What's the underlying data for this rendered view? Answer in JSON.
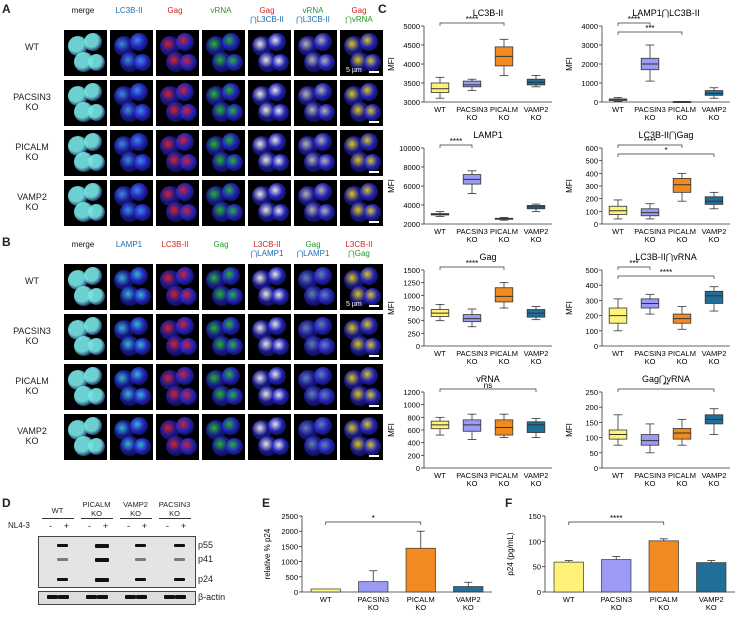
{
  "panels": {
    "A": "A",
    "B": "B",
    "C": "C",
    "D": "D",
    "E": "E",
    "F": "F"
  },
  "micro_A": {
    "headers": [
      {
        "parts": [
          {
            "t": "merge",
            "c": "#111"
          }
        ]
      },
      {
        "parts": [
          {
            "t": "LC3B-II",
            "c": "#1a6fb0"
          }
        ]
      },
      {
        "parts": [
          {
            "t": "Gag",
            "c": "#d21f1f"
          }
        ]
      },
      {
        "parts": [
          {
            "t": "vRNA",
            "c": "#1f9a2a"
          }
        ]
      },
      {
        "parts": [
          {
            "t": "Gag",
            "c": "#d21f1f"
          },
          {
            "t": "⋂L3CB-II",
            "c": "#1a6fb0"
          }
        ]
      },
      {
        "parts": [
          {
            "t": "vRNA",
            "c": "#1f9a2a"
          },
          {
            "t": "⋂L3CB-II",
            "c": "#1a6fb0"
          }
        ]
      },
      {
        "parts": [
          {
            "t": "Gag",
            "c": "#d21f1f"
          },
          {
            "t": "⋂vRNA",
            "c": "#1f9a2a"
          }
        ]
      }
    ],
    "rows": [
      "WT",
      "PACSIN3 KO",
      "PICALM KO",
      "VAMP2 KO"
    ],
    "scale": "5 µm"
  },
  "micro_B": {
    "headers": [
      {
        "parts": [
          {
            "t": "merge",
            "c": "#111"
          }
        ]
      },
      {
        "parts": [
          {
            "t": "LAMP1",
            "c": "#1a6fb0"
          }
        ]
      },
      {
        "parts": [
          {
            "t": "LC3B-II",
            "c": "#d21f1f"
          }
        ]
      },
      {
        "parts": [
          {
            "t": "Gag",
            "c": "#1f9a2a"
          }
        ]
      },
      {
        "parts": [
          {
            "t": "L3CB-II",
            "c": "#d21f1f"
          },
          {
            "t": "⋂LAMP1",
            "c": "#1a6fb0"
          }
        ]
      },
      {
        "parts": [
          {
            "t": "Gag",
            "c": "#1f9a2a"
          },
          {
            "t": "⋂LAMP1",
            "c": "#1a6fb0"
          }
        ]
      },
      {
        "parts": [
          {
            "t": "L3CB-II",
            "c": "#d21f1f"
          },
          {
            "t": "⋂Gag",
            "c": "#1f9a2a"
          }
        ]
      }
    ],
    "rows": [
      "WT",
      "PACSIN3 KO",
      "PICALM KO",
      "VAMP2 KO"
    ],
    "scale": "5 µm"
  },
  "western": {
    "groups": [
      "WT",
      "PICALM KO",
      "VAMP2 KO",
      "PACSIN3 KO"
    ],
    "treatment_label": "NL4-3",
    "signs": [
      "-",
      "+"
    ],
    "bands": [
      "p55",
      "p41",
      "p24"
    ],
    "loading": "β-actin"
  },
  "colors": {
    "WT": "#fff27a",
    "PACSIN3": "#9b9bf5",
    "PICALM": "#f28a22",
    "VAMP2": "#1f6f97"
  },
  "chart_data": [
    {
      "type": "box",
      "title": "LC3B-II",
      "ylabel": "MFI",
      "categories": [
        "WT",
        "PACSIN3 KO",
        "PICALM KO",
        "VAMP2 KO"
      ],
      "ylim": [
        3000,
        5000
      ],
      "yticks": [
        3000,
        3500,
        4000,
        4500,
        5000
      ],
      "boxes": [
        [
          3100,
          3250,
          3350,
          3500,
          3650
        ],
        [
          3300,
          3400,
          3450,
          3550,
          3600
        ],
        [
          3700,
          3950,
          4200,
          4450,
          4650
        ],
        [
          3400,
          3450,
          3520,
          3600,
          3700
        ]
      ],
      "sig": [
        {
          "from": 0,
          "to": 2,
          "label": "****"
        }
      ]
    },
    {
      "type": "box",
      "title": "LAMP1⋂LC3B-II",
      "ylabel": "MFI",
      "categories": [
        "WT",
        "PACSIN3 KO",
        "PICALM KO",
        "VAMP2 KO"
      ],
      "ylim": [
        0,
        4000
      ],
      "yticks": [
        0,
        1000,
        2000,
        3000,
        4000
      ],
      "boxes": [
        [
          30,
          80,
          120,
          160,
          230
        ],
        [
          1100,
          1700,
          2000,
          2300,
          3000
        ],
        [
          0,
          0,
          10,
          20,
          30
        ],
        [
          200,
          350,
          450,
          600,
          750
        ]
      ],
      "sig": [
        {
          "from": 0,
          "to": 1,
          "label": "****"
        },
        {
          "from": 0,
          "to": 2,
          "label": "***"
        }
      ]
    },
    {
      "type": "box",
      "title": "LAMP1",
      "ylabel": "MFI",
      "categories": [
        "WT",
        "PACSIN3 KO",
        "PICALM KO",
        "VAMP2 KO"
      ],
      "ylim": [
        2000,
        10000
      ],
      "yticks": [
        2000,
        4000,
        6000,
        8000,
        10000
      ],
      "boxes": [
        [
          2800,
          2950,
          3000,
          3100,
          3300
        ],
        [
          5200,
          6200,
          6700,
          7200,
          7600
        ],
        [
          2400,
          2500,
          2550,
          2600,
          2700
        ],
        [
          3300,
          3600,
          3800,
          3950,
          4100
        ]
      ],
      "sig": [
        {
          "from": 0,
          "to": 1,
          "label": "****"
        }
      ]
    },
    {
      "type": "box",
      "title": "LC3B-II⋂Gag",
      "ylabel": "MFI",
      "categories": [
        "WT",
        "PACSIN3 KO",
        "PICALM KO",
        "VAMP2 KO"
      ],
      "ylim": [
        0,
        600
      ],
      "yticks": [
        0,
        100,
        200,
        300,
        400,
        500,
        600
      ],
      "boxes": [
        [
          40,
          75,
          105,
          140,
          190
        ],
        [
          40,
          65,
          90,
          120,
          160
        ],
        [
          180,
          250,
          310,
          360,
          400
        ],
        [
          120,
          155,
          180,
          215,
          250
        ]
      ],
      "sig": [
        {
          "from": 0,
          "to": 2,
          "label": "****"
        },
        {
          "from": 0,
          "to": 3,
          "label": "*"
        }
      ]
    },
    {
      "type": "box",
      "title": "Gag",
      "ylabel": "MFI",
      "categories": [
        "WT",
        "PACSIN3 KO",
        "PICALM KO",
        "VAMP2 KO"
      ],
      "ylim": [
        0,
        1500
      ],
      "yticks": [
        0,
        250,
        500,
        750,
        1000,
        1250,
        1500
      ],
      "boxes": [
        [
          500,
          580,
          650,
          720,
          820
        ],
        [
          380,
          480,
          540,
          620,
          730
        ],
        [
          750,
          870,
          980,
          1150,
          1250
        ],
        [
          520,
          570,
          650,
          720,
          780
        ]
      ],
      "sig": [
        {
          "from": 0,
          "to": 2,
          "label": "****"
        }
      ]
    },
    {
      "type": "box",
      "title": "LC3B-II⋂vRNA",
      "ylabel": "MFI",
      "categories": [
        "WT",
        "PACSIN3 KO",
        "PICALM KO",
        "VAMP2 KO"
      ],
      "ylim": [
        0,
        500
      ],
      "yticks": [
        0,
        100,
        200,
        300,
        400,
        500
      ],
      "boxes": [
        [
          100,
          150,
          200,
          250,
          310
        ],
        [
          210,
          250,
          280,
          310,
          340
        ],
        [
          110,
          150,
          180,
          210,
          260
        ],
        [
          230,
          280,
          330,
          360,
          390
        ]
      ],
      "sig": [
        {
          "from": 0,
          "to": 1,
          "label": "***"
        },
        {
          "from": 0,
          "to": 3,
          "label": "****"
        }
      ]
    },
    {
      "type": "box",
      "title": "vRNA",
      "ylabel": "MFI",
      "categories": [
        "WT",
        "PACSIN3 KO",
        "PICALM KO",
        "VAMP2 KO"
      ],
      "ylim": [
        0,
        1200
      ],
      "yticks": [
        0,
        200,
        400,
        600,
        800,
        1000,
        1200
      ],
      "boxes": [
        [
          520,
          620,
          680,
          740,
          800
        ],
        [
          450,
          580,
          680,
          760,
          850
        ],
        [
          480,
          520,
          640,
          760,
          850
        ],
        [
          480,
          560,
          680,
          730,
          780
        ]
      ],
      "sig": [
        {
          "from": 0,
          "to": 3,
          "label": "ns"
        }
      ]
    },
    {
      "type": "box",
      "title": "Gag⋂vRNA",
      "ylabel": "MFI",
      "categories": [
        "WT",
        "PACSIN3 KO",
        "PICALM KO",
        "VAMP2 KO"
      ],
      "ylim": [
        0,
        250
      ],
      "yticks": [
        0,
        50,
        100,
        150,
        200,
        250
      ],
      "boxes": [
        [
          75,
          95,
          110,
          125,
          175
        ],
        [
          50,
          75,
          90,
          110,
          145
        ],
        [
          75,
          95,
          115,
          130,
          160
        ],
        [
          110,
          145,
          160,
          175,
          195
        ]
      ],
      "sig": [
        {
          "from": 0,
          "to": 3,
          "label": "**"
        }
      ]
    },
    {
      "type": "bar",
      "ylabel": "relative % p24",
      "categories": [
        "WT",
        "PACSIN3 KO",
        "PICALM KO",
        "VAMP2 KO"
      ],
      "ylim": [
        0,
        2500
      ],
      "yticks": [
        0,
        500,
        1000,
        1500,
        2000,
        2500
      ],
      "values": [
        100,
        340,
        1440,
        180
      ],
      "errors": [
        0,
        360,
        560,
        140
      ],
      "sig": [
        {
          "from": 0,
          "to": 2,
          "label": "*"
        }
      ]
    },
    {
      "type": "bar",
      "ylabel": "p24 (pg/mL)",
      "categories": [
        "WT",
        "PACSIN3 KO",
        "PICALM KO",
        "VAMP2 KO"
      ],
      "ylim": [
        0,
        150
      ],
      "yticks": [
        0,
        50,
        100,
        150
      ],
      "values": [
        59,
        64,
        101,
        58
      ],
      "errors": [
        3,
        6,
        4,
        4
      ],
      "sig": [
        {
          "from": 0,
          "to": 2,
          "label": "****"
        }
      ]
    }
  ]
}
